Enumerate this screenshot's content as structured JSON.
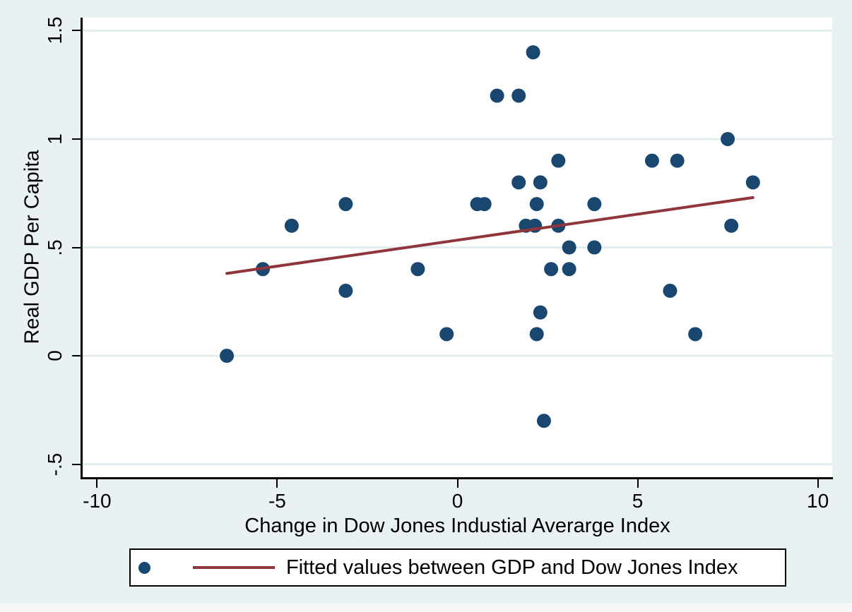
{
  "figure": {
    "background_color": "#eaf1f3",
    "plot_background_color": "#ffffff",
    "grid_color": "#e2edf0",
    "axis_color": "#000000",
    "text_color": "#000000"
  },
  "chart_data": {
    "type": "scatter",
    "title": "",
    "xlabel": "Change in Dow Jones Industial Averarge Index",
    "ylabel": "Real GDP Per Capita",
    "xlim": [
      -10.4,
      10.4
    ],
    "ylim": [
      -0.56,
      1.56
    ],
    "grid": "horizontal-only",
    "x_ticks": [
      {
        "v": -10,
        "label": "-10"
      },
      {
        "v": -5,
        "label": "-5"
      },
      {
        "v": 0,
        "label": "0"
      },
      {
        "v": 5,
        "label": "5"
      },
      {
        "v": 10,
        "label": "10"
      }
    ],
    "y_ticks": [
      {
        "v": -0.5,
        "label": "-.5"
      },
      {
        "v": 0,
        "label": "0"
      },
      {
        "v": 0.5,
        "label": ".5"
      },
      {
        "v": 1,
        "label": "1"
      },
      {
        "v": 1.5,
        "label": "1.5"
      }
    ],
    "series": [
      {
        "name": "Real GDP Per Capita",
        "type": "scatter",
        "color": "#1a476f",
        "marker_radius": 10,
        "points": [
          [
            -6.4,
            0.0
          ],
          [
            -5.4,
            0.4
          ],
          [
            -4.6,
            0.6
          ],
          [
            -3.1,
            0.7
          ],
          [
            -3.1,
            0.3
          ],
          [
            -1.1,
            0.4
          ],
          [
            -0.3,
            0.1
          ],
          [
            0.55,
            0.7
          ],
          [
            0.75,
            0.7
          ],
          [
            1.1,
            1.2
          ],
          [
            1.7,
            1.2
          ],
          [
            2.1,
            1.4
          ],
          [
            1.7,
            0.8
          ],
          [
            2.3,
            0.8
          ],
          [
            2.2,
            0.7
          ],
          [
            3.8,
            0.7
          ],
          [
            1.9,
            0.6
          ],
          [
            2.15,
            0.6
          ],
          [
            2.8,
            0.6
          ],
          [
            2.8,
            0.9
          ],
          [
            3.1,
            0.5
          ],
          [
            3.8,
            0.5
          ],
          [
            2.6,
            0.4
          ],
          [
            3.1,
            0.4
          ],
          [
            2.3,
            0.2
          ],
          [
            2.2,
            0.1
          ],
          [
            2.4,
            -0.3
          ],
          [
            5.4,
            0.9
          ],
          [
            6.1,
            0.9
          ],
          [
            7.5,
            1.0
          ],
          [
            8.2,
            0.8
          ],
          [
            7.6,
            0.6
          ],
          [
            5.9,
            0.3
          ],
          [
            6.6,
            0.1
          ]
        ]
      },
      {
        "name": "Fitted values",
        "type": "line",
        "color": "#90353b",
        "line_width": 4,
        "points": [
          [
            -6.4,
            0.38
          ],
          [
            8.2,
            0.73
          ]
        ]
      }
    ],
    "legend": {
      "position": "bottom",
      "label": "Fitted values between GDP and Dow Jones Index"
    }
  }
}
